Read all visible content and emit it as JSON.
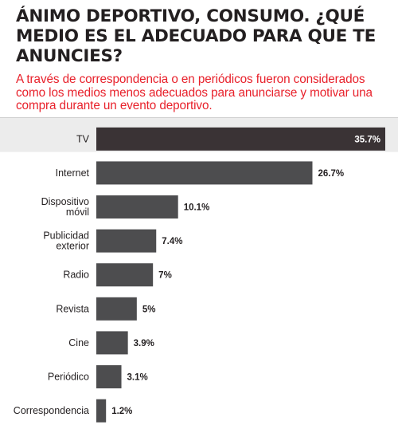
{
  "title": "ÁNIMO DEPORTIVO, CONSUMO. ¿QUÉ MEDIO ES EL ADECUADO PARA QUE TE ANUNCIES?",
  "subtitle": "A través de correspondencia o en periódicos fueron considerados como los medios menos adecuados para anunciarse y motivar una compra durante un evento deportivo.",
  "colors": {
    "title": "#231f20",
    "subtitle": "#e8212b",
    "bar_top": "#3a3335",
    "bar": "#4d4d4f",
    "row_alt": "#ececec"
  },
  "chart_data": {
    "type": "bar",
    "orientation": "horizontal",
    "title": "ÁNIMO DEPORTIVO, CONSUMO. ¿QUÉ MEDIO ES EL ADECUADO PARA QUE TE ANUNCIES?",
    "categories": [
      "TV",
      "Internet",
      "Dispositivo móvil",
      "Publicidad exterior",
      "Radio",
      "Revista",
      "Cine",
      "Periódico",
      "Correspondencia"
    ],
    "category_lines": [
      [
        "TV"
      ],
      [
        "Internet"
      ],
      [
        "Dispositivo",
        "móvil"
      ],
      [
        "Publicidad",
        "exterior"
      ],
      [
        "Radio"
      ],
      [
        "Revista"
      ],
      [
        "Cine"
      ],
      [
        "Periódico"
      ],
      [
        "Correspondencia"
      ]
    ],
    "values": [
      35.7,
      26.7,
      10.1,
      7.4,
      7,
      5,
      3.9,
      3.1,
      1.2
    ],
    "value_labels": [
      "35.7%",
      "26.7%",
      "10.1%",
      "7.4%",
      "7%",
      "5%",
      "3.9%",
      "3.1%",
      "1.2%"
    ],
    "unit": "%",
    "xlim": [
      0,
      35.7
    ],
    "xlabel": "",
    "ylabel": "",
    "grid": false,
    "legend": "none"
  }
}
